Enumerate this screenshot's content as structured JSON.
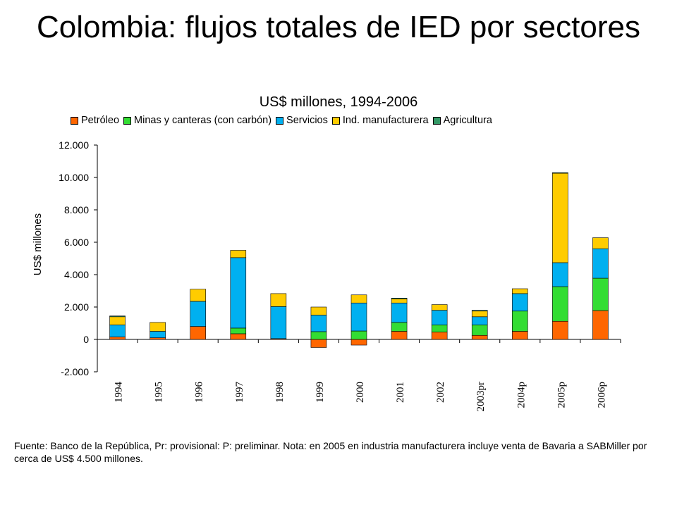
{
  "title": "Colombia: flujos totales de IED por sectores",
  "subtitle": "US$ millones, 1994-2006",
  "source_note": "Fuente: Banco de la República, Pr: provisional: P: preliminar. Nota: en 2005 en industria manufacturera incluye venta de Bavaria a SABMiller por cerca de US$ 4.500 millones.",
  "chart_data": {
    "type": "bar",
    "stacked": true,
    "ylabel": "US$ millones",
    "ylim": [
      -2000,
      12000
    ],
    "yticks": [
      -2000,
      0,
      2000,
      4000,
      6000,
      8000,
      10000,
      12000
    ],
    "ytick_labels": [
      "-2.000",
      "0",
      "2.000",
      "4.000",
      "6.000",
      "8.000",
      "10.000",
      "12.000"
    ],
    "legend_position": "top",
    "categories": [
      "1994",
      "1995",
      "1996",
      "1997",
      "1998",
      "1999",
      "2000",
      "2001",
      "2002",
      "2003pr",
      "2004p",
      "2005p",
      "2006p"
    ],
    "series": [
      {
        "name": "Petróleo",
        "color": "#FF6600",
        "values": [
          150,
          100,
          800,
          350,
          50,
          -500,
          -350,
          500,
          450,
          250,
          500,
          1120,
          1780
        ]
      },
      {
        "name": "Minas y canteras (con carbón)",
        "color": "#33DD33",
        "values": [
          0,
          0,
          0,
          350,
          0,
          480,
          520,
          550,
          450,
          650,
          1250,
          2140,
          2000
        ]
      },
      {
        "name": "Servicios",
        "color": "#00B0F0",
        "values": [
          750,
          400,
          1550,
          4350,
          1980,
          1020,
          1730,
          1200,
          900,
          500,
          1080,
          1480,
          1820
        ]
      },
      {
        "name": "Ind. manufacturera",
        "color": "#FFCC00",
        "values": [
          500,
          550,
          750,
          450,
          800,
          500,
          500,
          250,
          350,
          350,
          300,
          5520,
          680
        ]
      },
      {
        "name": "Agricultura",
        "color": "#339966",
        "values": [
          50,
          0,
          0,
          0,
          0,
          0,
          0,
          50,
          0,
          50,
          0,
          40,
          0
        ]
      }
    ]
  }
}
